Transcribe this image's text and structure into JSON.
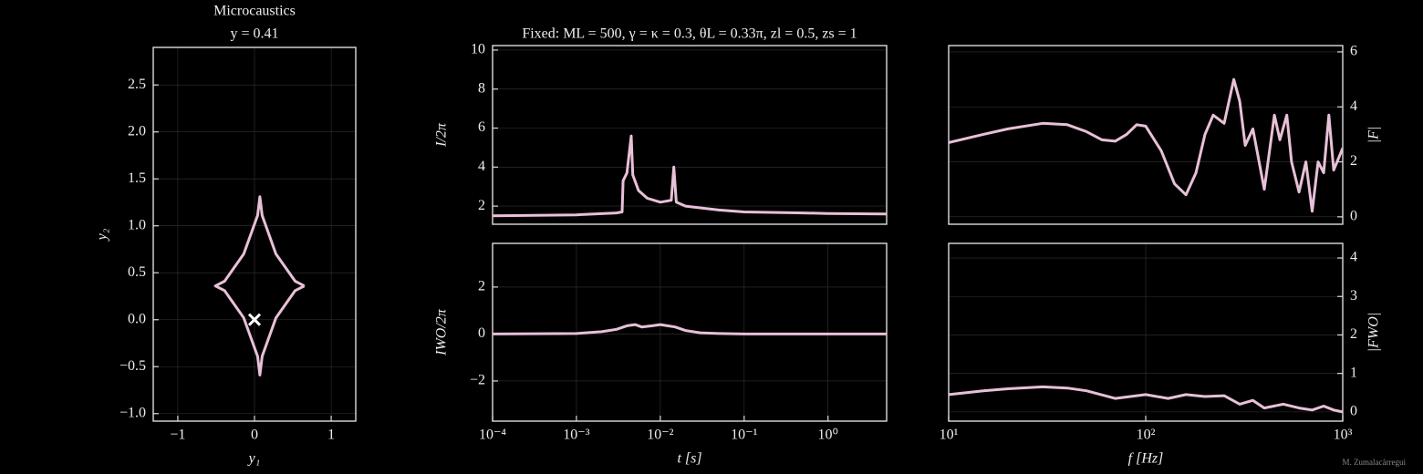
{
  "chart_data": [
    {
      "type": "line",
      "title": "Microcaustics",
      "subtitle": "y = 0.41",
      "xlabel": "y₁",
      "ylabel": "y₂",
      "xlim": [
        -1.32,
        1.32
      ],
      "ylim": [
        -1.08,
        2.9
      ],
      "xticks": [
        {
          "value": -1,
          "label": "−1"
        },
        0,
        1
      ],
      "yticks": [
        {
          "value": -1,
          "label": "−1.0"
        },
        {
          "value": -0.5,
          "label": "−0.5"
        },
        {
          "value": 0,
          "label": "0.0"
        },
        0.5,
        {
          "value": 1,
          "label": "1.0"
        },
        1.5,
        {
          "value": 2,
          "label": "2.0"
        },
        2.5
      ],
      "grid": true,
      "yaxis_side": "left",
      "series": [
        {
          "marker": "line",
          "color": "#e8c0d8",
          "x": [
            0.65,
            0.53,
            0.28,
            0.1,
            0.07,
            0.04,
            -0.14,
            -0.39,
            -0.51,
            -0.39,
            -0.14,
            0.04,
            0.07,
            0.1,
            0.28,
            0.53,
            0.65
          ],
          "y": [
            0.36,
            0.41,
            0.7,
            1.11,
            1.31,
            1.11,
            0.7,
            0.41,
            0.36,
            0.31,
            0.02,
            -0.39,
            -0.59,
            -0.39,
            0.02,
            0.31,
            0.36
          ]
        },
        {
          "marker": "x",
          "color": "#ffffff",
          "x": [
            0
          ],
          "y": [
            0
          ]
        }
      ]
    },
    {
      "type": "line",
      "title": "Fixed: ML = 500, γ = κ = 0.3, θL = 0.33π, zl = 0.5, zs = 1",
      "ylabel": "I/2π",
      "xscale": "log",
      "xlim": [
        0.0001,
        5
      ],
      "ylim": [
        1.07,
        10.23
      ],
      "yticks": [
        2,
        4,
        6,
        8,
        10
      ],
      "grid": true,
      "yaxis_side": "left",
      "series": [
        {
          "marker": "line",
          "color": "#e8c0d8",
          "x": [
            0.0001,
            0.001,
            0.003,
            0.0035,
            0.0036,
            0.004,
            0.0045,
            0.0047,
            0.0055,
            0.007,
            0.01,
            0.0135,
            0.0145,
            0.0155,
            0.02,
            0.05,
            0.1,
            0.5,
            1,
            5
          ],
          "y": [
            1.5,
            1.55,
            1.65,
            1.7,
            3.3,
            3.7,
            5.6,
            3.6,
            2.8,
            2.4,
            2.2,
            2.3,
            4.0,
            2.2,
            2.0,
            1.8,
            1.7,
            1.65,
            1.62,
            1.6
          ]
        }
      ]
    },
    {
      "type": "line",
      "ylabel": "IWO/2π",
      "xlabel": "t [s]",
      "xscale": "log",
      "xlim": [
        0.0001,
        5
      ],
      "ylim": [
        -3.71,
        3.86
      ],
      "xticks": [
        {
          "value": 0.0001,
          "label": "10⁻⁴"
        },
        {
          "value": 0.001,
          "label": "10⁻³"
        },
        {
          "value": 0.01,
          "label": "10⁻²"
        },
        {
          "value": 0.1,
          "label": "10⁻¹"
        },
        {
          "value": 1,
          "label": "10⁰"
        }
      ],
      "yticks": [
        {
          "value": -2,
          "label": "−2"
        },
        0,
        2
      ],
      "grid": true,
      "yaxis_side": "left",
      "series": [
        {
          "marker": "line",
          "color": "#e8c0d8",
          "x": [
            0.0001,
            0.001,
            0.002,
            0.003,
            0.004,
            0.005,
            0.006,
            0.008,
            0.01,
            0.015,
            0.02,
            0.03,
            0.05,
            0.1,
            1,
            5
          ],
          "y": [
            0,
            0.02,
            0.1,
            0.2,
            0.35,
            0.4,
            0.3,
            0.35,
            0.4,
            0.3,
            0.15,
            0.05,
            0.02,
            0,
            0,
            0
          ]
        }
      ]
    },
    {
      "type": "line",
      "ylabel": "|F|",
      "xscale": "log",
      "xlim": [
        10,
        1000
      ],
      "ylim": [
        -0.27,
        6.23
      ],
      "yticks": [
        0,
        2,
        4,
        6
      ],
      "grid": true,
      "yaxis_side": "right",
      "series": [
        {
          "marker": "line",
          "color": "#e8c0d8",
          "x": [
            10,
            15,
            20,
            30,
            40,
            50,
            60,
            70,
            80,
            90,
            100,
            120,
            140,
            160,
            180,
            200,
            220,
            250,
            280,
            300,
            320,
            350,
            400,
            450,
            480,
            520,
            550,
            600,
            650,
            700,
            750,
            800,
            850,
            900,
            1000
          ],
          "y": [
            2.7,
            3.0,
            3.2,
            3.4,
            3.35,
            3.1,
            2.8,
            2.75,
            3.0,
            3.35,
            3.3,
            2.4,
            1.2,
            0.8,
            1.6,
            3.0,
            3.7,
            3.4,
            5.0,
            4.2,
            2.6,
            3.2,
            1.0,
            3.7,
            2.8,
            3.7,
            2.0,
            0.9,
            2.0,
            0.2,
            2.0,
            1.6,
            3.7,
            1.7,
            2.5
          ]
        }
      ]
    },
    {
      "type": "line",
      "ylabel": "|FWO|",
      "xlabel": "f [Hz]",
      "xscale": "log",
      "xlim": [
        10,
        1000
      ],
      "ylim": [
        -0.24,
        4.38
      ],
      "xticks": [
        {
          "value": 10,
          "label": "10¹"
        },
        {
          "value": 100,
          "label": "10²"
        },
        {
          "value": 1000,
          "label": "10³"
        }
      ],
      "yticks": [
        0,
        1,
        2,
        3,
        4
      ],
      "grid": true,
      "yaxis_side": "right",
      "series": [
        {
          "marker": "line",
          "color": "#e8c0d8",
          "x": [
            10,
            15,
            20,
            30,
            40,
            50,
            70,
            100,
            130,
            160,
            200,
            250,
            300,
            350,
            400,
            500,
            600,
            700,
            800,
            900,
            1000
          ],
          "y": [
            0.45,
            0.55,
            0.6,
            0.65,
            0.62,
            0.55,
            0.35,
            0.45,
            0.35,
            0.45,
            0.4,
            0.42,
            0.2,
            0.3,
            0.1,
            0.2,
            0.1,
            0.05,
            0.15,
            0.05,
            0.0
          ]
        }
      ]
    }
  ],
  "credit": "M. Zumalacárregui"
}
